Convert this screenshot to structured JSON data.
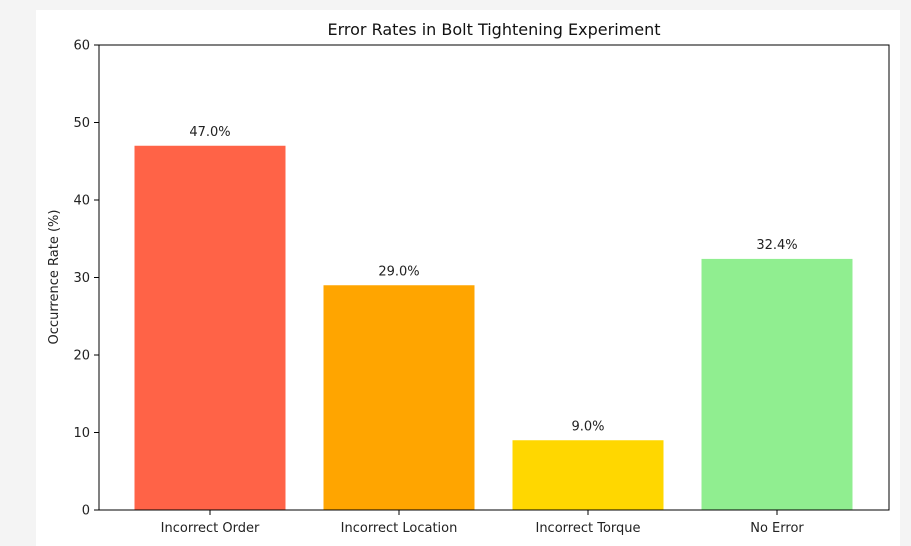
{
  "chart_data": {
    "type": "bar",
    "title": "Error Rates in Bolt Tightening Experiment",
    "xlabel": "",
    "ylabel": "Occurrence Rate (%)",
    "categories": [
      "Incorrect Order",
      "Incorrect Location",
      "Incorrect Torque",
      "No Error"
    ],
    "values": [
      47.0,
      29.0,
      9.0,
      32.4
    ],
    "data_labels": [
      "47.0%",
      "29.0%",
      "9.0%",
      "32.4%"
    ],
    "colors": [
      "#ff6347",
      "#ffa500",
      "#ffd700",
      "#90ee90"
    ],
    "ylim": [
      0,
      60
    ],
    "yticks": [
      0,
      10,
      20,
      30,
      40,
      50,
      60
    ],
    "grid": false,
    "legend": "none"
  }
}
